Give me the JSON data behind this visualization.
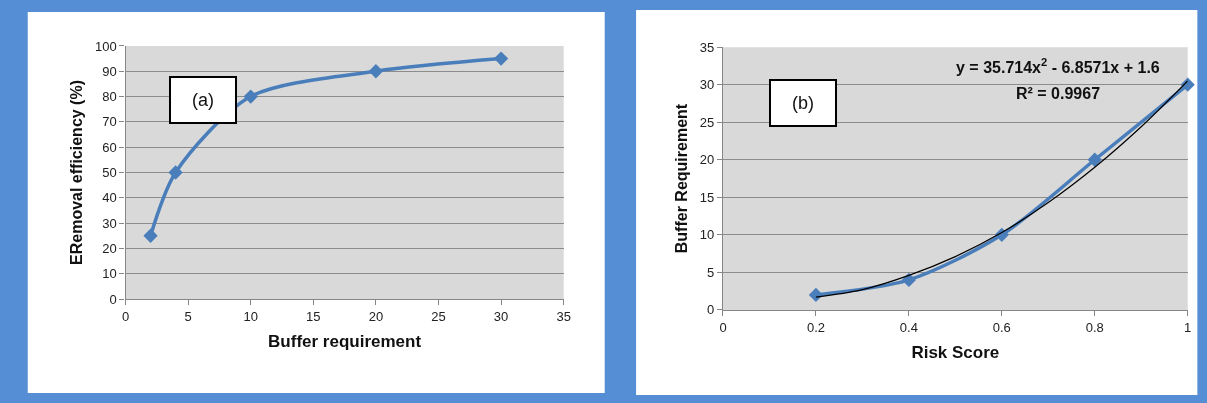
{
  "chart_data": [
    {
      "type": "line",
      "xlabel": "Buffer requirement",
      "ylabel": "ERemoval efficiency (%)",
      "annotations": [
        "(a)"
      ],
      "x": [
        2,
        4,
        10,
        20,
        30
      ],
      "series": [
        {
          "color": "#4a7ebb",
          "values": [
            25,
            50,
            80,
            90,
            95
          ]
        }
      ],
      "xlim": [
        0,
        35
      ],
      "xticks": [
        0,
        5,
        10,
        15,
        20,
        25,
        30,
        35
      ],
      "ylim": [
        0,
        100
      ],
      "yticks": [
        0,
        10,
        20,
        30,
        40,
        50,
        60,
        70,
        80,
        90,
        100
      ],
      "grid": "y",
      "marker": "diamond",
      "line_style": "solid"
    },
    {
      "type": "line",
      "xlabel": "Risk Score",
      "ylabel": "Buffer Requirement",
      "annotations": [
        "(b)",
        "y = 35.714x$^{2}$ - 6.8571x + 1.6",
        "R² = 0.9967"
      ],
      "x": [
        0.2,
        0.4,
        0.6,
        0.8,
        1
      ],
      "series": [
        {
          "color": "#4a7ebb",
          "values": [
            2,
            4,
            10,
            20,
            30
          ],
          "marker": "diamond"
        },
        {
          "color": "#000000",
          "x": [
            0.2,
            0.3,
            0.4,
            0.5,
            0.6,
            0.7,
            0.8,
            0.9,
            1
          ],
          "values": [
            1.7,
            2.7,
            4.6,
            7.1,
            10.3,
            14.3,
            19.0,
            24.4,
            30.5
          ],
          "marker": "none"
        }
      ],
      "xlim": [
        0,
        1
      ],
      "xticks": [
        0,
        0.2,
        0.4,
        0.6,
        0.8,
        1
      ],
      "ylim": [
        0,
        35
      ],
      "yticks": [
        0,
        5,
        10,
        15,
        20,
        25,
        30,
        35
      ],
      "grid": "y",
      "line_style": "solid"
    }
  ]
}
